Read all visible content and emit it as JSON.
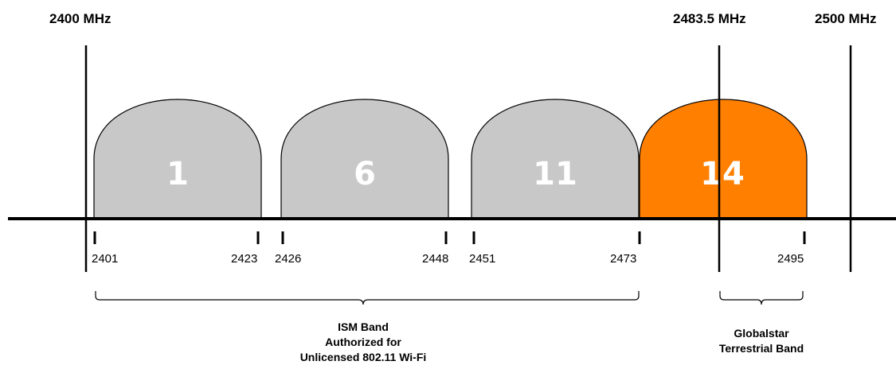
{
  "headers": {
    "left": "2400 MHz",
    "mid": "2483.5 MHz",
    "right": "2500 MHz"
  },
  "channels": [
    {
      "label": "1",
      "start": 2401,
      "end": 2423,
      "color": "#c8c8c8"
    },
    {
      "label": "6",
      "start": 2426,
      "end": 2448,
      "color": "#c8c8c8"
    },
    {
      "label": "11",
      "start": 2451,
      "end": 2473,
      "color": "#c8c8c8"
    },
    {
      "label": "14",
      "start": 2473,
      "end": 2495,
      "color": "#ff7f00"
    }
  ],
  "tick_labels": [
    "2401",
    "2423",
    "2426",
    "2448",
    "2451",
    "2473",
    "2495"
  ],
  "bands": {
    "ism": [
      "ISM Band",
      "Authorized for",
      "Unlicensed 802.11 Wi-Fi"
    ],
    "globalstar": [
      "Globalstar",
      "Terrestrial Band"
    ]
  },
  "colors": {
    "channel_fill": "#c8c8c8",
    "channel14_fill": "#ff7f00",
    "channel_label": "#ffffff",
    "line": "#000000"
  }
}
